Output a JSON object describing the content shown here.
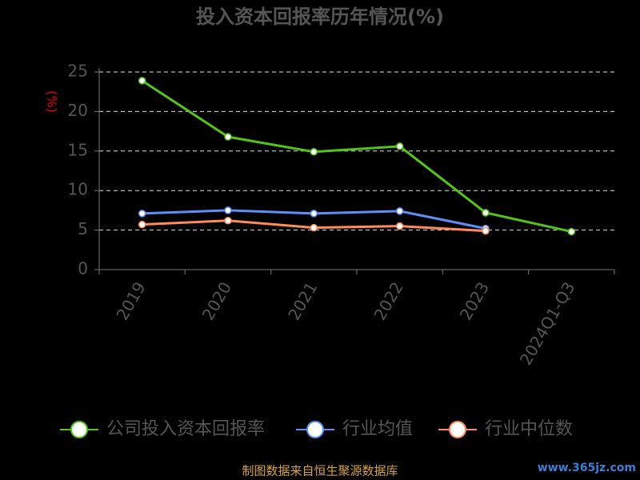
{
  "chart_data": {
    "type": "line",
    "title": "投入资本回报率历年情况(%)",
    "y_label": "(%)",
    "categories": [
      "2019",
      "2020",
      "2021",
      "2022",
      "2023",
      "2024Q1-Q3"
    ],
    "series": [
      {
        "name": "公司投入资本回报率",
        "color": "#52c41a",
        "values": [
          23.9,
          16.8,
          14.9,
          15.6,
          7.2,
          4.8
        ]
      },
      {
        "name": "行业均值",
        "color": "#5b8ff9",
        "values": [
          7.1,
          7.5,
          7.1,
          7.4,
          5.2,
          null
        ]
      },
      {
        "name": "行业中位数",
        "color": "#ff8c5a",
        "values": [
          5.7,
          6.2,
          5.3,
          5.5,
          4.9,
          null
        ]
      }
    ],
    "ylim": [
      0,
      25
    ],
    "yticks": [
      0,
      5,
      10,
      15,
      20,
      25
    ],
    "grid": true,
    "footer": "制图数据来自恒生聚源数据库",
    "watermark": "www.365jz.com"
  }
}
